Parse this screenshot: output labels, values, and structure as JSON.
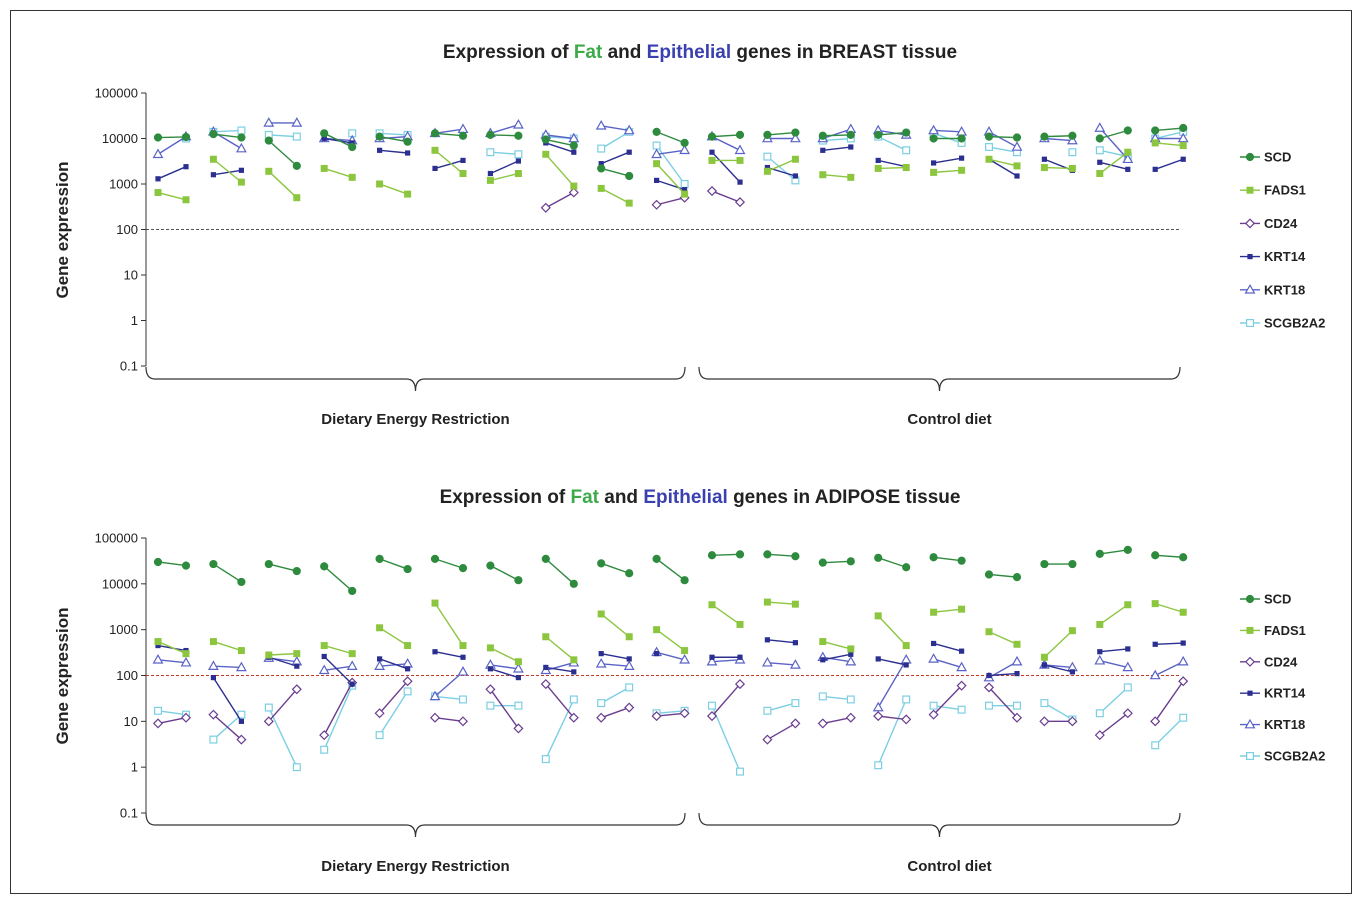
{
  "colors": {
    "SCD": "#2e8b3e",
    "FADS1": "#8cc63f",
    "CD24": "#6a3d8f",
    "KRT14": "#2b2f8f",
    "KRT18": "#5a63c6",
    "SCGB2A2": "#7ccfe3",
    "threshold_top": "#555555",
    "threshold_bottom": "#c0392b",
    "fat_word": "#3daa4a",
    "epithelial_word": "#3a40b0"
  },
  "chart_data": [
    {
      "type": "line",
      "yscale": "log",
      "title": {
        "pre": "Expression of ",
        "fat": "Fat",
        "mid": " and ",
        "epi": "Epithelial",
        "post": "  genes in BREAST tissue"
      },
      "ylabel": "Gene expression",
      "ylim": [
        0.1,
        100000
      ],
      "yticks": [
        "0.1",
        "1",
        "10",
        "100",
        "1000",
        "10000",
        "100000"
      ],
      "threshold": 100,
      "groups": [
        "Dietary Energy Restriction",
        "Control diet"
      ],
      "group_sizes": [
        10,
        9
      ],
      "legend": [
        {
          "name": "SCD",
          "marker": "circle",
          "key": "SCD"
        },
        {
          "name": "FADS1",
          "marker": "square",
          "key": "FADS1"
        },
        {
          "name": "CD24",
          "marker": "diamond-open",
          "key": "CD24"
        },
        {
          "name": "KRT14",
          "marker": "square-small",
          "key": "KRT14"
        },
        {
          "name": "KRT18",
          "marker": "triangle-open",
          "key": "KRT18"
        },
        {
          "name": "SCGB2A2",
          "marker": "square-open",
          "key": "SCGB2A2"
        }
      ],
      "series": {
        "SCD": [
          [
            10500,
            10800
          ],
          [
            12500,
            10500
          ],
          [
            9000,
            2500
          ],
          [
            13000,
            6500
          ],
          [
            11000,
            8500
          ],
          [
            13000,
            11500
          ],
          [
            12000,
            11500
          ],
          [
            9500,
            7000
          ],
          [
            2200,
            1500
          ],
          [
            14000,
            8000
          ],
          [
            11000,
            12000
          ],
          [
            12000,
            13500
          ],
          [
            11500,
            12000
          ],
          [
            12000,
            13500
          ],
          [
            10000,
            10000
          ],
          [
            11000,
            10500
          ],
          [
            11000,
            11500
          ],
          [
            10000,
            15000
          ],
          [
            15000,
            17000
          ]
        ],
        "FADS1": [
          [
            650,
            450
          ],
          [
            3500,
            1100
          ],
          [
            1900,
            500
          ],
          [
            2200,
            1400
          ],
          [
            1000,
            600
          ],
          [
            5500,
            1700
          ],
          [
            1200,
            1700
          ],
          [
            4500,
            900
          ],
          [
            800,
            380
          ],
          [
            2800,
            600
          ],
          [
            3300,
            3300
          ],
          [
            1900,
            3500
          ],
          [
            1600,
            1400
          ],
          [
            2200,
            2300
          ],
          [
            1800,
            2000
          ],
          [
            3500,
            2500
          ],
          [
            2300,
            2200
          ],
          [
            1700,
            5000
          ],
          [
            8000,
            7000
          ]
        ],
        "CD24": [
          [
            null,
            null
          ],
          [
            null,
            null
          ],
          [
            null,
            null
          ],
          [
            null,
            null
          ],
          [
            null,
            null
          ],
          [
            null,
            null
          ],
          [
            null,
            null
          ],
          [
            300,
            650
          ],
          [
            null,
            null
          ],
          [
            350,
            500
          ],
          [
            700,
            400
          ],
          [
            null,
            null
          ],
          [
            null,
            null
          ],
          [
            null,
            null
          ],
          [
            null,
            null
          ],
          [
            null,
            null
          ],
          [
            null,
            null
          ],
          [
            null,
            null
          ],
          [
            null,
            null
          ]
        ],
        "KRT14": [
          [
            1300,
            2400
          ],
          [
            1600,
            2000
          ],
          [
            null,
            null
          ],
          [
            10000,
            8000
          ],
          [
            5500,
            4800
          ],
          [
            2200,
            3300
          ],
          [
            1700,
            3200
          ],
          [
            8000,
            5000
          ],
          [
            2800,
            5000
          ],
          [
            1200,
            750
          ],
          [
            5000,
            1100
          ],
          [
            2300,
            1500
          ],
          [
            5500,
            6500
          ],
          [
            3300,
            2400
          ],
          [
            2900,
            3700
          ],
          [
            3500,
            1500
          ],
          [
            3500,
            2000
          ],
          [
            3000,
            2100
          ],
          [
            2100,
            3500
          ]
        ],
        "KRT18": [
          [
            4500,
            11000
          ],
          [
            14000,
            6000
          ],
          [
            22000,
            22000
          ],
          [
            10000,
            9000
          ],
          [
            10000,
            11000
          ],
          [
            13000,
            16000
          ],
          [
            13000,
            20000
          ],
          [
            12000,
            10000
          ],
          [
            19000,
            15000
          ],
          [
            4500,
            5500
          ],
          [
            11000,
            5500
          ],
          [
            10000,
            10000
          ],
          [
            10000,
            16000
          ],
          [
            15000,
            12000
          ],
          [
            15000,
            14000
          ],
          [
            14000,
            6500
          ],
          [
            10000,
            9000
          ],
          [
            17000,
            3500
          ],
          [
            10000,
            10000
          ]
        ],
        "SCGB2A2": [
          [
            null,
            10000
          ],
          [
            14000,
            15000
          ],
          [
            12000,
            11000
          ],
          [
            null,
            13000
          ],
          [
            13000,
            12000
          ],
          [
            null,
            null
          ],
          [
            5000,
            4500
          ],
          [
            11000,
            10000
          ],
          [
            6000,
            14000
          ],
          [
            7000,
            1000
          ],
          [
            null,
            null
          ],
          [
            4000,
            1200
          ],
          [
            9000,
            10000
          ],
          [
            11000,
            5500
          ],
          [
            13000,
            8000
          ],
          [
            6500,
            5000
          ],
          [
            null,
            5000
          ],
          [
            5500,
            4000
          ],
          [
            10000,
            14000
          ]
        ]
      }
    },
    {
      "type": "line",
      "yscale": "log",
      "title": {
        "pre": "Expression of ",
        "fat": "Fat",
        "mid": " and ",
        "epi": "Epithelial",
        "post": "  genes in ADIPOSE tissue"
      },
      "ylabel": "Gene expression",
      "ylim": [
        0.1,
        100000
      ],
      "yticks": [
        "0.1",
        "1",
        "10",
        "100",
        "1000",
        "10000",
        "100000"
      ],
      "threshold": 100,
      "groups": [
        "Dietary Energy Restriction",
        "Control diet"
      ],
      "group_sizes": [
        10,
        9
      ],
      "legend": [
        {
          "name": "SCD",
          "marker": "circle",
          "key": "SCD"
        },
        {
          "name": "FADS1",
          "marker": "square",
          "key": "FADS1"
        },
        {
          "name": "CD24",
          "marker": "diamond-open",
          "key": "CD24"
        },
        {
          "name": "KRT14",
          "marker": "square-small",
          "key": "KRT14"
        },
        {
          "name": "KRT18",
          "marker": "triangle-open",
          "key": "KRT18"
        },
        {
          "name": "SCGB2A2",
          "marker": "square-open",
          "key": "SCGB2A2"
        }
      ],
      "series": {
        "SCD": [
          [
            30000,
            25000
          ],
          [
            27000,
            11000
          ],
          [
            27000,
            19000
          ],
          [
            24000,
            7000
          ],
          [
            35000,
            21000
          ],
          [
            35000,
            22000
          ],
          [
            25000,
            12000
          ],
          [
            35000,
            10000
          ],
          [
            28000,
            17000
          ],
          [
            35000,
            12000
          ],
          [
            42000,
            44000
          ],
          [
            44000,
            40000
          ],
          [
            29000,
            31000
          ],
          [
            37000,
            23000
          ],
          [
            38000,
            32000
          ],
          [
            16000,
            14000
          ],
          [
            27000,
            27000
          ],
          [
            45000,
            55000
          ],
          [
            42000,
            38000
          ]
        ],
        "FADS1": [
          [
            550,
            300
          ],
          [
            550,
            350
          ],
          [
            280,
            300
          ],
          [
            450,
            300
          ],
          [
            1100,
            450
          ],
          [
            3800,
            450
          ],
          [
            400,
            200
          ],
          [
            700,
            220
          ],
          [
            2200,
            700
          ],
          [
            1000,
            350
          ],
          [
            3500,
            1300
          ],
          [
            4000,
            3600
          ],
          [
            550,
            380
          ],
          [
            2000,
            450
          ],
          [
            2400,
            2800
          ],
          [
            900,
            480
          ],
          [
            250,
            950
          ],
          [
            1300,
            3500
          ],
          [
            3700,
            2400
          ]
        ],
        "CD24": [
          [
            9,
            12
          ],
          [
            14,
            4
          ],
          [
            10,
            50
          ],
          [
            5,
            70
          ],
          [
            15,
            75
          ],
          [
            12,
            10
          ],
          [
            50,
            7
          ],
          [
            65,
            12
          ],
          [
            12,
            20
          ],
          [
            13,
            15
          ],
          [
            13,
            65
          ],
          [
            4,
            9
          ],
          [
            9,
            12
          ],
          [
            13,
            11
          ],
          [
            14,
            60
          ],
          [
            55,
            12
          ],
          [
            10,
            10
          ],
          [
            5,
            15
          ],
          [
            10,
            75
          ]
        ],
        "KRT14": [
          [
            450,
            350
          ],
          [
            90,
            10
          ],
          [
            250,
            160
          ],
          [
            260,
            65
          ],
          [
            230,
            140
          ],
          [
            330,
            250
          ],
          [
            140,
            90
          ],
          [
            150,
            120
          ],
          [
            300,
            230
          ],
          [
            300,
            null
          ],
          [
            250,
            250
          ],
          [
            600,
            520
          ],
          [
            220,
            290
          ],
          [
            230,
            170
          ],
          [
            500,
            340
          ],
          [
            100,
            110
          ],
          [
            170,
            120
          ],
          [
            330,
            380
          ],
          [
            480,
            510
          ]
        ],
        "KRT18": [
          [
            220,
            190
          ],
          [
            160,
            150
          ],
          [
            240,
            200
          ],
          [
            130,
            160
          ],
          [
            160,
            180
          ],
          [
            35,
            120
          ],
          [
            170,
            140
          ],
          [
            130,
            190
          ],
          [
            180,
            160
          ],
          [
            320,
            220
          ],
          [
            200,
            220
          ],
          [
            190,
            170
          ],
          [
            250,
            200
          ],
          [
            20,
            220
          ],
          [
            230,
            150
          ],
          [
            90,
            200
          ],
          [
            170,
            150
          ],
          [
            210,
            150
          ],
          [
            100,
            200
          ]
        ],
        "SCGB2A2": [
          [
            17,
            14
          ],
          [
            4,
            14
          ],
          [
            20,
            1
          ],
          [
            2.4,
            60
          ],
          [
            5,
            45
          ],
          [
            35,
            30
          ],
          [
            22,
            22
          ],
          [
            1.5,
            30
          ],
          [
            25,
            55
          ],
          [
            15,
            17
          ],
          [
            22,
            0.8
          ],
          [
            17,
            25
          ],
          [
            35,
            30
          ],
          [
            1.1,
            30
          ],
          [
            22,
            18
          ],
          [
            22,
            22
          ],
          [
            25,
            11
          ],
          [
            15,
            55
          ],
          [
            3,
            12
          ]
        ]
      }
    }
  ]
}
